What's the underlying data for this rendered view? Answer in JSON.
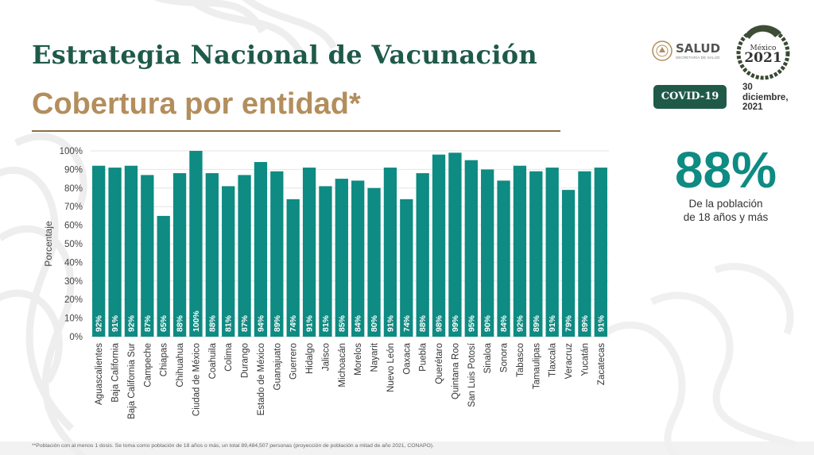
{
  "header": {
    "title": "Estrategia Nacional de Vacunación",
    "subtitle": "Cobertura por entidad*"
  },
  "logos": {
    "salud": "SALUD",
    "salud_sub": "SECRETARÍA DE SALUD",
    "seal_year": "2021",
    "seal_top": "México"
  },
  "badge": {
    "label": "COVID-19"
  },
  "date": {
    "line1": "30",
    "line2": "diciembre,",
    "line3": "2021"
  },
  "summary": {
    "value": "88%",
    "desc_line1": "De la población",
    "desc_line2": "de 18 años y más"
  },
  "footnote": "**Población con al menos 1 dosis. Se toma como población de 18 años o más, un total 89,484,507 personas (proyección de población a mitad de año 2021, CONAPO).",
  "colors": {
    "bar": "#0e8b82",
    "title": "#1f5a49",
    "subtitle": "#b38e5d",
    "grid": "#e6e6e6"
  },
  "chart_data": {
    "type": "bar",
    "ylabel": "Porcentaje",
    "ylim": [
      0,
      100
    ],
    "yticks": [
      "0%",
      "10%",
      "20%",
      "30%",
      "40%",
      "50%",
      "60%",
      "70%",
      "80%",
      "90%",
      "100%"
    ],
    "grid": true,
    "categories": [
      "Aguascalientes",
      "Baja California",
      "Baja California Sur",
      "Campeche",
      "Chiapas",
      "Chihuahua",
      "Ciudad de México",
      "Coahuila",
      "Colima",
      "Durango",
      "Estado de México",
      "Guanajuato",
      "Guerrero",
      "Hidalgo",
      "Jalisco",
      "Michoacán",
      "Morelos",
      "Nayarit",
      "Nuevo León",
      "Oaxaca",
      "Puebla",
      "Querétaro",
      "Quintana Roo",
      "San Luis Potosí",
      "Sinaloa",
      "Sonora",
      "Tabasco",
      "Tamaulipas",
      "Tlaxcala",
      "Veracruz",
      "Yucatán",
      "Zacatecas"
    ],
    "values": [
      92,
      91,
      92,
      87,
      65,
      88,
      100,
      88,
      81,
      87,
      94,
      89,
      74,
      91,
      81,
      85,
      84,
      80,
      91,
      74,
      88,
      98,
      99,
      95,
      90,
      84,
      92,
      89,
      91,
      79,
      89,
      91
    ],
    "labels": [
      "92%",
      "91%",
      "92%",
      "87%",
      "65%",
      "88%",
      "100%",
      "88%",
      "81%",
      "87%",
      "94%",
      "89%",
      "74%",
      "91%",
      "81%",
      "85%",
      "84%",
      "80%",
      "91%",
      "74%",
      "88%",
      "98%",
      "99%",
      "95%",
      "90%",
      "84%",
      "92%",
      "89%",
      "91%",
      "79%",
      "89%",
      "91%"
    ]
  }
}
